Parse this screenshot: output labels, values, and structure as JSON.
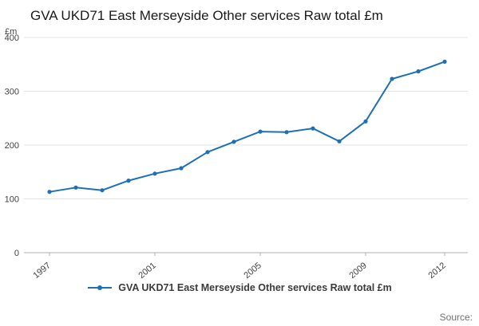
{
  "chart_data": {
    "type": "line",
    "title": "GVA UKD71 East Merseyside Other services Raw total £m",
    "unit_label": "£m",
    "x": [
      1997,
      1998,
      1999,
      2000,
      2001,
      2002,
      2003,
      2004,
      2005,
      2006,
      2007,
      2008,
      2009,
      2010,
      2011,
      2012
    ],
    "values": [
      113,
      121,
      116,
      134,
      147,
      157,
      187,
      206,
      225,
      224,
      231,
      207,
      244,
      323,
      337,
      355
    ],
    "ylim": [
      0,
      400
    ],
    "y_ticks": [
      0,
      100,
      200,
      300,
      400
    ],
    "x_tick_labels": [
      "1997",
      "2001",
      "2005",
      "2009",
      "2012"
    ],
    "grid": "horizontal",
    "legend_position": "bottom",
    "series_name": "GVA UKD71 East Merseyside Other services Raw total £m",
    "line_color": "#1d70b8",
    "gridline_color": "#e3e3e3",
    "baseline_color": "#b0b0b0"
  },
  "legend": {
    "label": "GVA UKD71 East Merseyside Other services Raw total £m"
  },
  "source": {
    "label": "Source:"
  }
}
